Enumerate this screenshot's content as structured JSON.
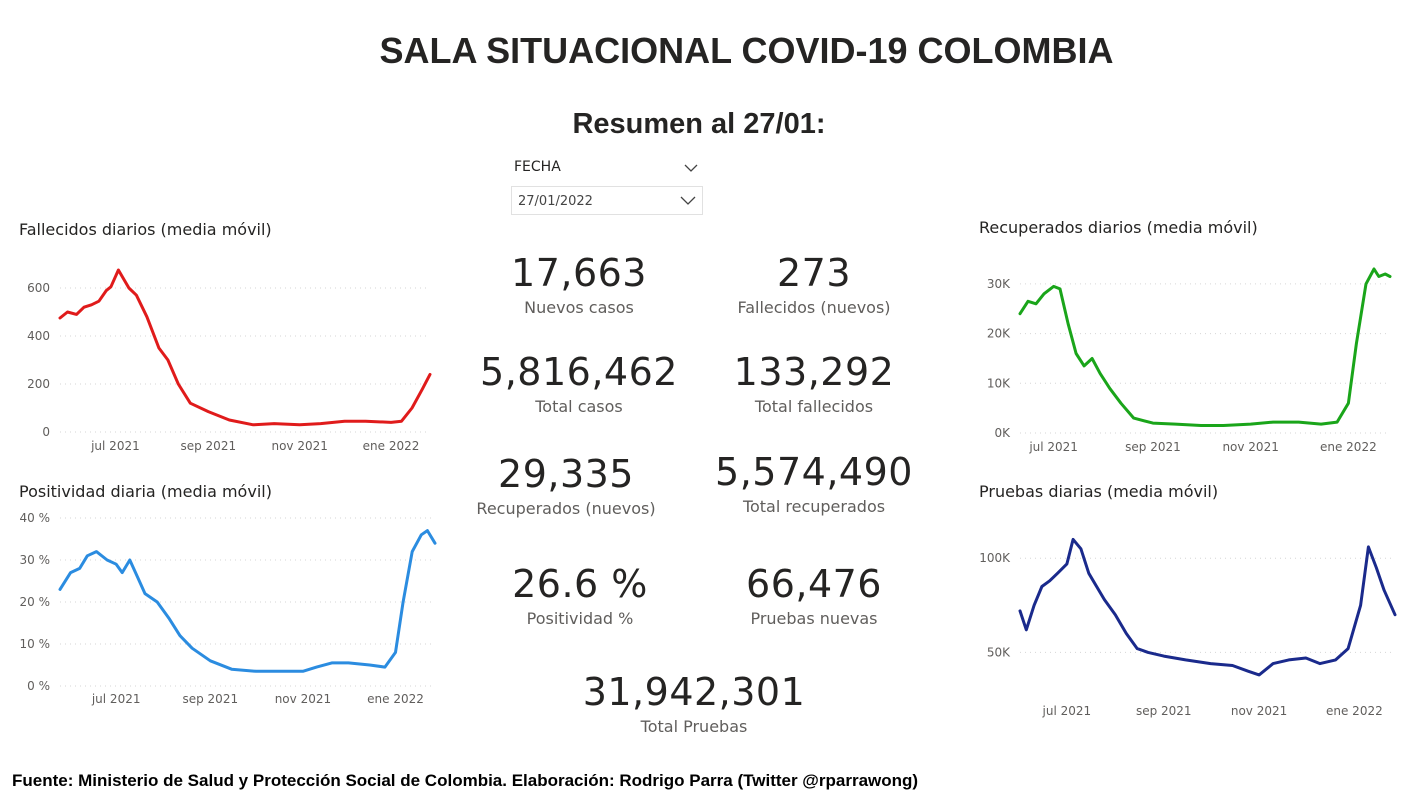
{
  "header": {
    "title": "SALA SITUACIONAL COVID-19 COLOMBIA",
    "subtitle": "Resumen al 27/01:"
  },
  "slicer": {
    "label": "FECHA",
    "value": "27/01/2022"
  },
  "kpis": [
    {
      "value": "17,663",
      "label": "Nuevos casos"
    },
    {
      "value": "273",
      "label": "Fallecidos (nuevos)"
    },
    {
      "value": "5,816,462",
      "label": "Total casos"
    },
    {
      "value": "133,292",
      "label": "Total fallecidos"
    },
    {
      "value": "29,335",
      "label": "Recuperados (nuevos)"
    },
    {
      "value": "5,574,490",
      "label": "Total recuperados"
    },
    {
      "value": "26.6 %",
      "label": "Positividad %"
    },
    {
      "value": "66,476",
      "label": "Pruebas nuevas"
    },
    {
      "value": "31,942,301",
      "label": "Total Pruebas"
    }
  ],
  "chart_data": [
    {
      "type": "line",
      "title": "Fallecidos diarios (media móvil)",
      "color": "#e01b1b",
      "x_ticks": [
        "jul 2021",
        "sep 2021",
        "nov 2021",
        "ene 2022"
      ],
      "y_ticks": [
        "0",
        "200",
        "400",
        "600"
      ],
      "ylim": [
        0,
        700
      ],
      "x_range": [
        "2021-05-25",
        "2022-01-27"
      ],
      "series": [
        {
          "x": [
            "2021-05-25",
            "2021-05-30",
            "2021-06-05",
            "2021-06-10",
            "2021-06-15",
            "2021-06-20",
            "2021-06-25",
            "2021-06-28",
            "2021-07-03",
            "2021-07-10",
            "2021-07-15",
            "2021-07-22",
            "2021-07-30",
            "2021-08-05",
            "2021-08-12",
            "2021-08-20",
            "2021-09-01",
            "2021-09-15",
            "2021-10-01",
            "2021-10-15",
            "2021-11-01",
            "2021-11-15",
            "2021-12-01",
            "2021-12-15",
            "2022-01-01",
            "2022-01-08",
            "2022-01-15",
            "2022-01-22",
            "2022-01-27"
          ],
          "y": [
            475,
            500,
            490,
            520,
            530,
            545,
            590,
            605,
            675,
            600,
            570,
            480,
            350,
            300,
            200,
            120,
            85,
            50,
            30,
            35,
            30,
            35,
            45,
            45,
            40,
            45,
            100,
            180,
            240
          ]
        }
      ]
    },
    {
      "type": "line",
      "title": "Positividad diaria (media móvil)",
      "color": "#2b8ce0",
      "x_ticks": [
        "jul 2021",
        "sep 2021",
        "nov 2021",
        "ene 2022"
      ],
      "y_ticks": [
        "0 %",
        "10 %",
        "20 %",
        "30 %",
        "40 %"
      ],
      "ylim": [
        0,
        40
      ],
      "x_range": [
        "2021-05-25",
        "2022-01-27"
      ],
      "series": [
        {
          "x": [
            "2021-05-25",
            "2021-06-01",
            "2021-06-07",
            "2021-06-12",
            "2021-06-18",
            "2021-06-25",
            "2021-07-01",
            "2021-07-05",
            "2021-07-10",
            "2021-07-15",
            "2021-07-20",
            "2021-07-28",
            "2021-08-05",
            "2021-08-12",
            "2021-08-20",
            "2021-09-01",
            "2021-09-15",
            "2021-10-01",
            "2021-10-15",
            "2021-11-01",
            "2021-11-10",
            "2021-11-20",
            "2021-12-01",
            "2021-12-15",
            "2021-12-25",
            "2022-01-01",
            "2022-01-06",
            "2022-01-12",
            "2022-01-18",
            "2022-01-22",
            "2022-01-27"
          ],
          "y": [
            23,
            27,
            28,
            31,
            32,
            30,
            29,
            27,
            30,
            26,
            22,
            20,
            16,
            12,
            9,
            6,
            4,
            3.5,
            3.5,
            3.5,
            4.5,
            5.5,
            5.5,
            5,
            4.5,
            8,
            20,
            32,
            36,
            37,
            34
          ]
        }
      ]
    },
    {
      "type": "line",
      "title": "Recuperados diarios (media móvil)",
      "color": "#1aa51a",
      "x_ticks": [
        "jul 2021",
        "sep 2021",
        "nov 2021",
        "ene 2022"
      ],
      "y_ticks": [
        "0K",
        "10K",
        "20K",
        "30K"
      ],
      "ylim": [
        0,
        33000
      ],
      "x_range": [
        "2021-06-10",
        "2022-01-27"
      ],
      "series": [
        {
          "x": [
            "2021-06-10",
            "2021-06-15",
            "2021-06-20",
            "2021-06-25",
            "2021-07-01",
            "2021-07-05",
            "2021-07-10",
            "2021-07-15",
            "2021-07-20",
            "2021-07-25",
            "2021-07-30",
            "2021-08-05",
            "2021-08-12",
            "2021-08-20",
            "2021-09-01",
            "2021-09-15",
            "2021-10-01",
            "2021-10-15",
            "2021-11-01",
            "2021-11-15",
            "2021-12-01",
            "2021-12-15",
            "2021-12-25",
            "2022-01-01",
            "2022-01-06",
            "2022-01-12",
            "2022-01-17",
            "2022-01-20",
            "2022-01-24",
            "2022-01-27"
          ],
          "y": [
            24000,
            26500,
            26000,
            28000,
            29500,
            29000,
            22000,
            16000,
            13500,
            15000,
            12000,
            9000,
            6000,
            3000,
            2000,
            1800,
            1500,
            1500,
            1800,
            2200,
            2200,
            1800,
            2200,
            6000,
            18000,
            30000,
            33000,
            31500,
            32000,
            31500
          ]
        }
      ]
    },
    {
      "type": "line",
      "title": "Pruebas diarias (media móvil)",
      "color": "#1a2a8c",
      "x_ticks": [
        "jul 2021",
        "sep 2021",
        "nov 2021",
        "ene 2022"
      ],
      "y_ticks": [
        "50K",
        "100K"
      ],
      "ylim": [
        30000,
        115000
      ],
      "x_range": [
        "2021-06-01",
        "2022-01-27"
      ],
      "series": [
        {
          "x": [
            "2021-06-01",
            "2021-06-05",
            "2021-06-10",
            "2021-06-15",
            "2021-06-20",
            "2021-06-25",
            "2021-07-01",
            "2021-07-05",
            "2021-07-10",
            "2021-07-15",
            "2021-07-20",
            "2021-07-25",
            "2021-08-01",
            "2021-08-08",
            "2021-08-15",
            "2021-08-22",
            "2021-09-01",
            "2021-09-15",
            "2021-10-01",
            "2021-10-15",
            "2021-10-25",
            "2021-11-01",
            "2021-11-10",
            "2021-11-20",
            "2021-12-01",
            "2021-12-10",
            "2021-12-20",
            "2021-12-28",
            "2022-01-05",
            "2022-01-10",
            "2022-01-15",
            "2022-01-20",
            "2022-01-27"
          ],
          "y": [
            72000,
            62000,
            75000,
            85000,
            88000,
            92000,
            97000,
            110000,
            105000,
            92000,
            85000,
            78000,
            70000,
            60000,
            52000,
            50000,
            48000,
            46000,
            44000,
            43000,
            40000,
            38000,
            44000,
            46000,
            47000,
            44000,
            46000,
            52000,
            75000,
            106000,
            95000,
            83000,
            70000
          ]
        }
      ]
    }
  ],
  "footer": {
    "text": "Fuente: Ministerio de Salud y Protección Social de Colombia. Elaboración: Rodrigo Parra (Twitter @rparrawong)"
  }
}
